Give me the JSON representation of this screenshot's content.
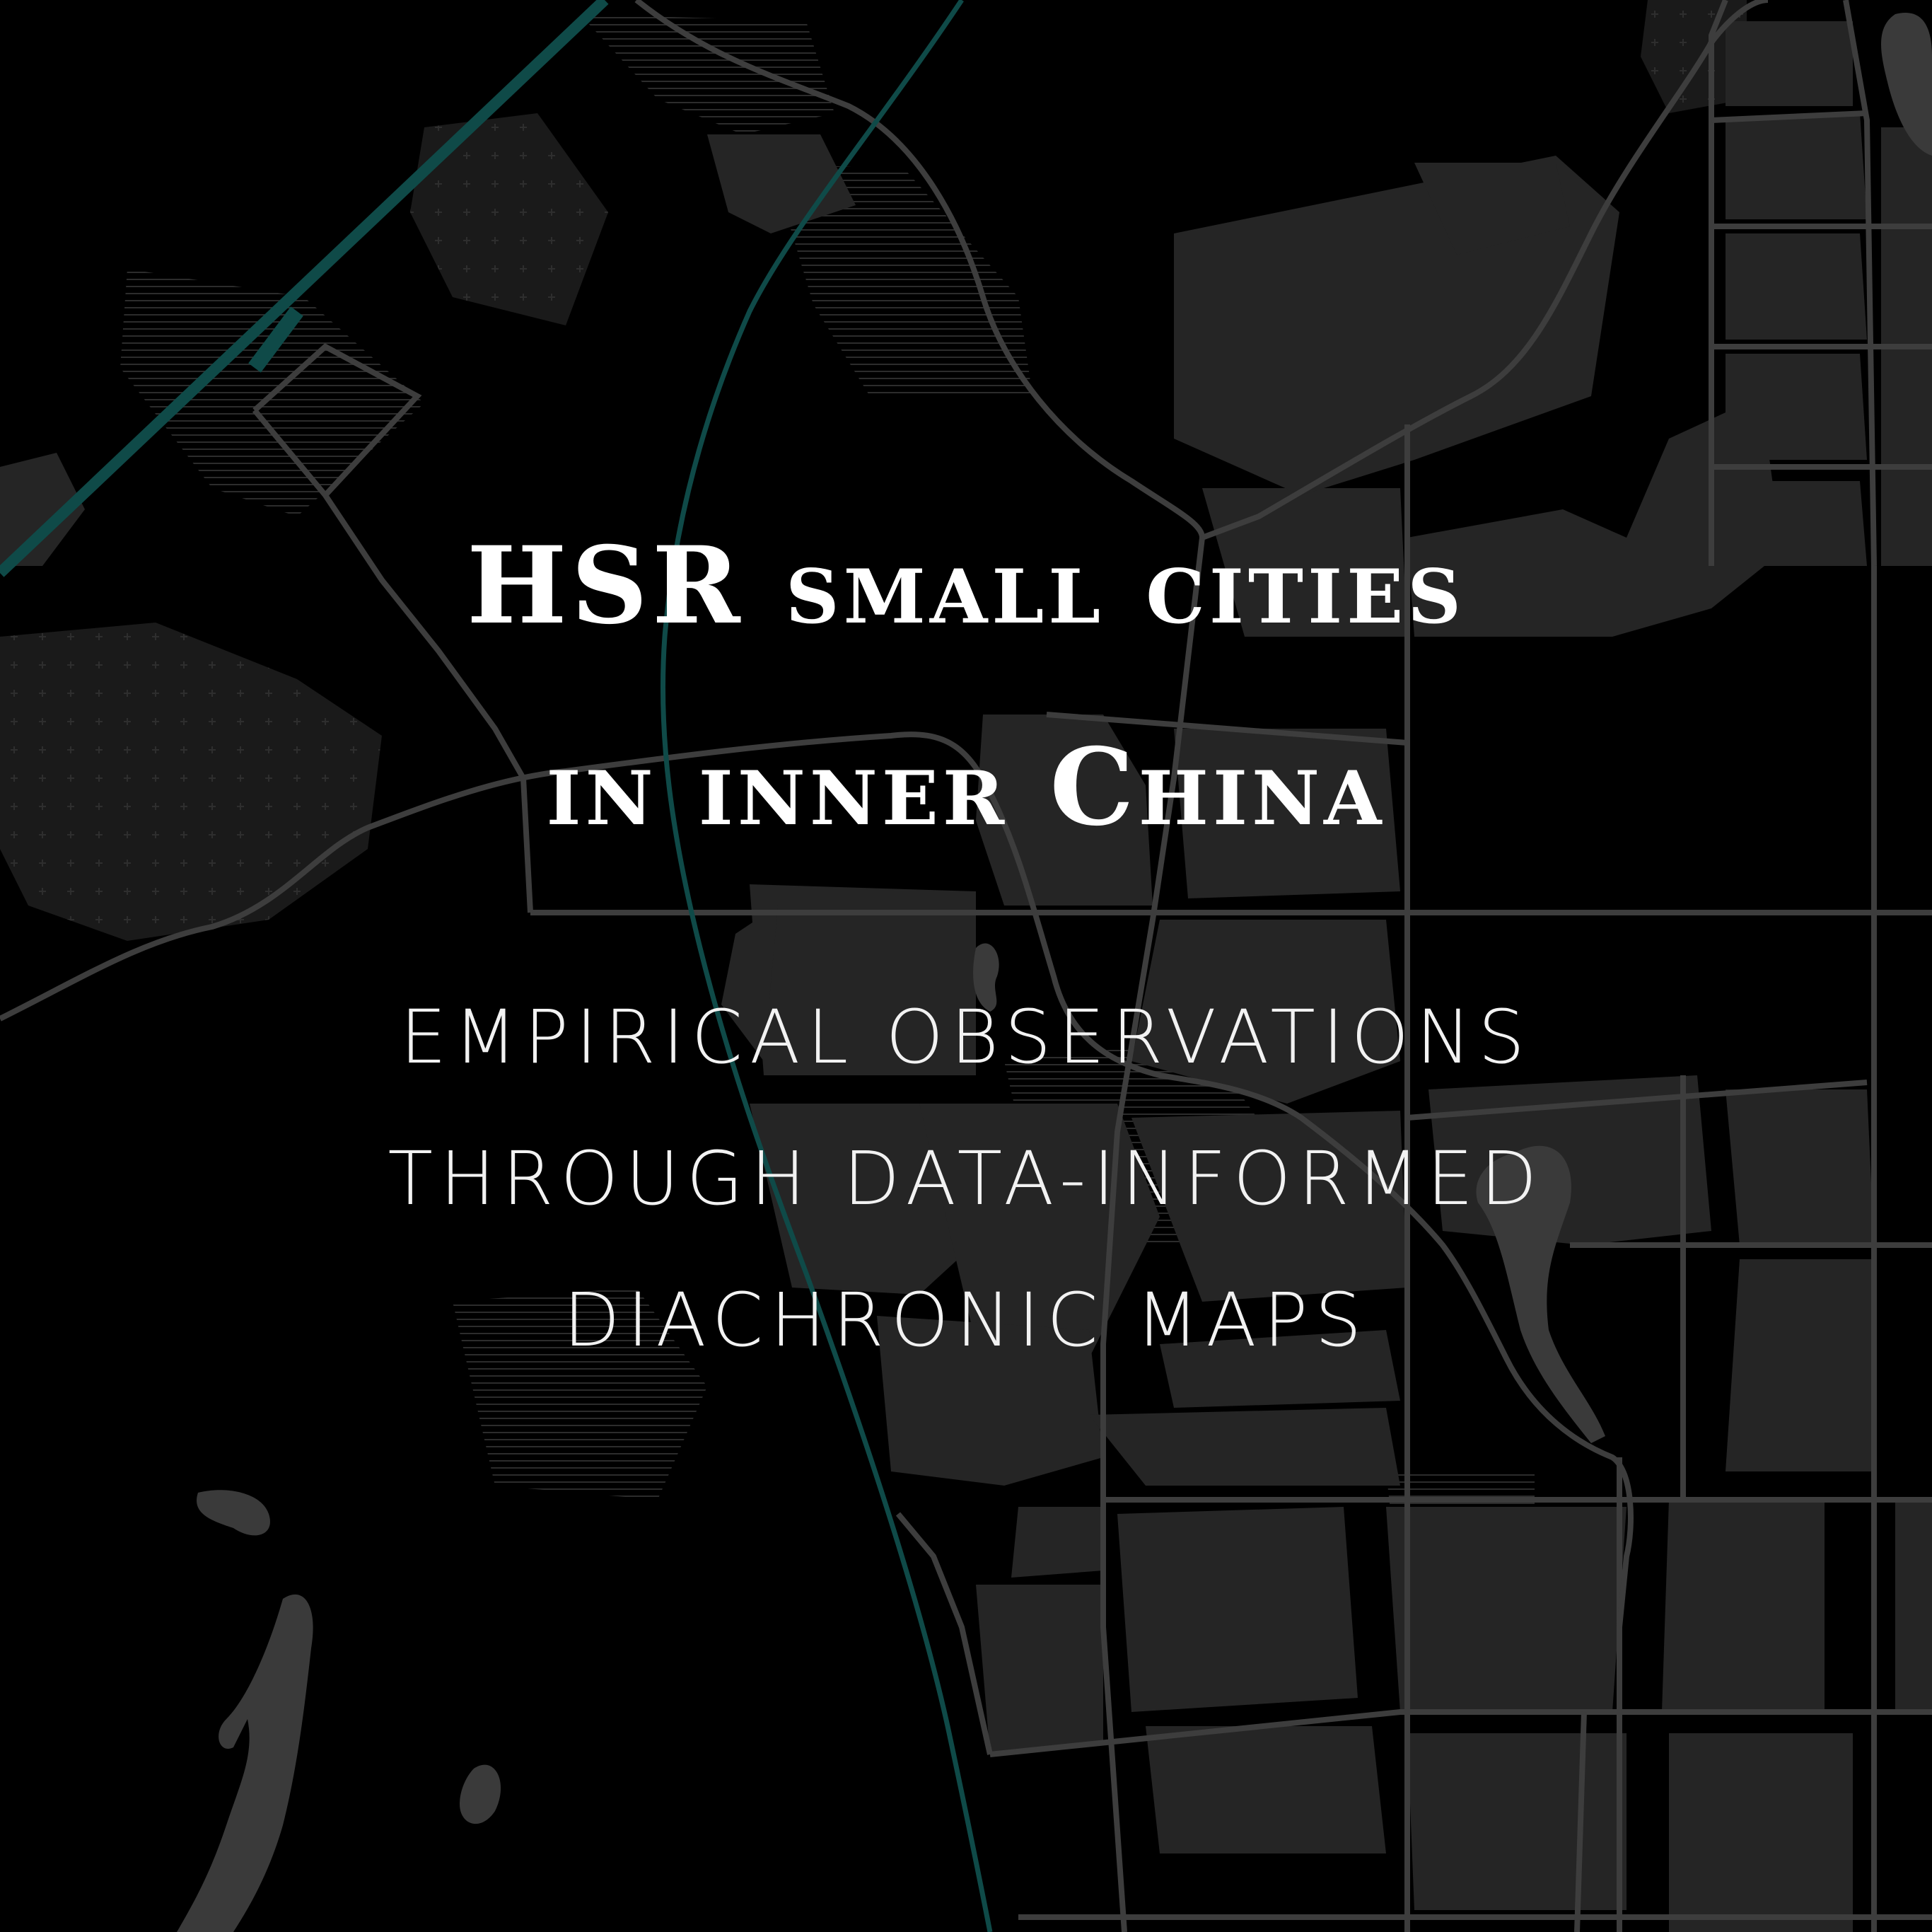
{
  "cover": {
    "title_line_1": "HSR small cities",
    "title_line_2": "in inner China",
    "subtitle_line_1": "EMPIRICAL OBSERVATIONS",
    "subtitle_line_2": "THROUGH DATA-INFORMED",
    "subtitle_line_3": "DIACHRONIC MAPS"
  },
  "colors": {
    "background": "#000000",
    "block": "#262626",
    "road": "#3d3d3d",
    "water": "#3a3a3a",
    "rail": "#0f4a48",
    "text": "#ffffff"
  }
}
